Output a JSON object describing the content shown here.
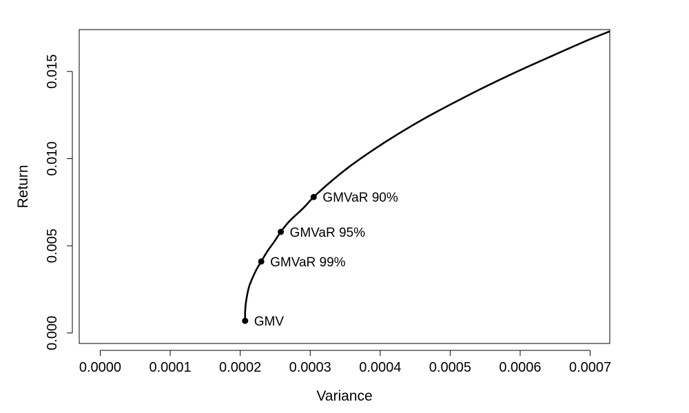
{
  "chart_data": {
    "type": "line",
    "title": "",
    "xlabel": "Variance",
    "ylabel": "Return",
    "xlim": [
      -3e-05,
      0.000728
    ],
    "ylim": [
      -0.0006,
      0.0174
    ],
    "x_ticks": [
      "0.0000",
      "0.0001",
      "0.0002",
      "0.0003",
      "0.0004",
      "0.0005",
      "0.0006",
      "0.0007"
    ],
    "x_tick_values": [
      0,
      0.0001,
      0.0002,
      0.0003,
      0.0004,
      0.0005,
      0.0006,
      0.0007
    ],
    "y_ticks": [
      "0.000",
      "0.005",
      "0.010",
      "0.015"
    ],
    "y_tick_values": [
      0,
      0.005,
      0.01,
      0.015
    ],
    "grid": false,
    "series": [
      {
        "x": [
          0.000207,
          0.000207,
          0.000208,
          0.00021,
          0.000213,
          0.000218,
          0.000224,
          0.00023,
          0.000239,
          0.000248,
          0.000258,
          0.00027,
          0.000291,
          0.000305,
          0.00033,
          0.000358,
          0.00039,
          0.000425,
          0.000463,
          0.000505,
          0.000549,
          0.000596,
          0.000646,
          0.000697,
          0.000728
        ],
        "y": [
          0.0007,
          0.0012,
          0.0017,
          0.0022,
          0.0027,
          0.0032,
          0.0037,
          0.0041,
          0.0047,
          0.0052,
          0.0058,
          0.0064,
          0.0072,
          0.0078,
          0.0087,
          0.0096,
          0.0105,
          0.0114,
          0.0123,
          0.0132,
          0.0141,
          0.015,
          0.0159,
          0.0168,
          0.0173
        ]
      }
    ],
    "points": [
      {
        "label": "GMV",
        "x": 0.000207,
        "y": 0.0007
      },
      {
        "label": "GMVaR 99%",
        "x": 0.00023,
        "y": 0.0041
      },
      {
        "label": "GMVaR 95%",
        "x": 0.000258,
        "y": 0.0058
      },
      {
        "label": "GMVaR 90%",
        "x": 0.000305,
        "y": 0.0078
      }
    ]
  }
}
